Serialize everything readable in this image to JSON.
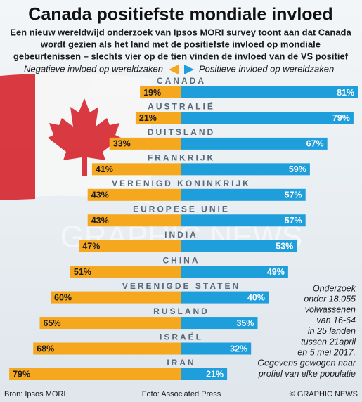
{
  "chart_data": {
    "type": "diverging_bar",
    "title": "Canada positiefste mondiale invloed",
    "subtitle": [
      "Een nieuw wereldwijd onderzoek van Ipsos MORI survey toont aan dat Canada",
      "wordt gezien als het land met de positiefste invloed op mondiale",
      "gebeurtenissen – slechts vier op de tien vinden de invloed van de VS positief"
    ],
    "categories": [
      "CANADA",
      "AUSTRALIË",
      "DUITSLAND",
      "FRANKRIJK",
      "VERENIGD KONINKRIJK",
      "EUROPESE UNIE",
      "INDIA",
      "CHINA",
      "VERENIGDE STATEN",
      "RUSLAND",
      "ISRAËL",
      "IRAN"
    ],
    "series": [
      {
        "name": "Negatieve invloed op wereldzaken",
        "color": "#f5a81e",
        "values": [
          19,
          21,
          33,
          41,
          43,
          43,
          47,
          51,
          60,
          65,
          68,
          79
        ],
        "value_labels": [
          "19%",
          "21%",
          "33%",
          "41%",
          "43%",
          "43%",
          "47%",
          "51%",
          "60%",
          "65%",
          "68%",
          "79%"
        ]
      },
      {
        "name": "Positieve invloed op wereldzaken",
        "color": "#1e9fdc",
        "values": [
          81,
          79,
          67,
          59,
          57,
          57,
          53,
          49,
          40,
          35,
          32,
          21
        ],
        "value_labels": [
          "81%",
          "79%",
          "67%",
          "59%",
          "57%",
          "57%",
          "53%",
          "49%",
          "40%",
          "35%",
          "32%",
          "21%"
        ]
      }
    ],
    "note": [
      "Onderzoek",
      "onder 18.055",
      "volwassenen",
      "van 16-64",
      "in 25 landen",
      "tussen 21april",
      "en 5 mei 2017.",
      "Gegevens gewogen naar",
      "profiel van elke populatie"
    ],
    "source": "Bron: Ipsos MORI",
    "photo_credit": "Foto: Associated Press",
    "copyright": "© GRAPHIC NEWS",
    "watermark": "GRAPHIC NEWS"
  }
}
